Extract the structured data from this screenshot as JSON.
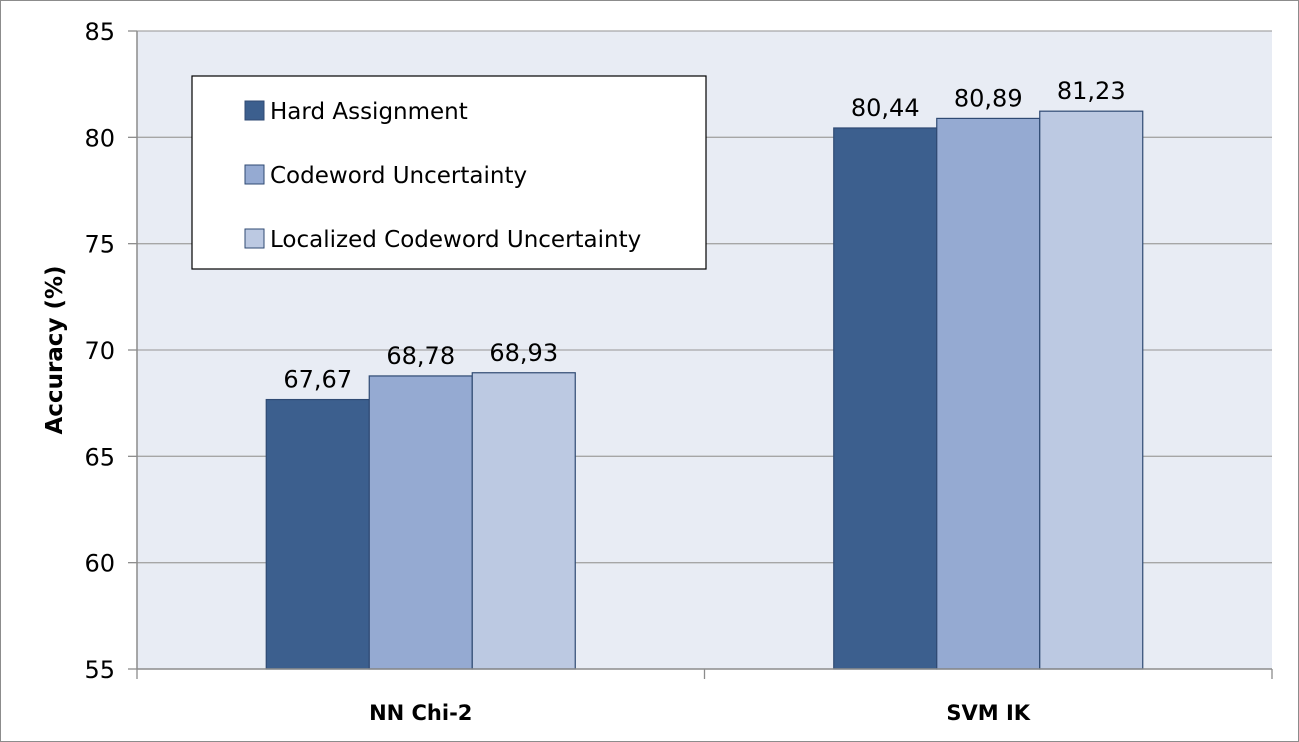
{
  "chart_data": {
    "type": "bar",
    "categories": [
      "NN Chi-2",
      "SVM IK"
    ],
    "series": [
      {
        "name": "Hard Assignment",
        "values": [
          67.67,
          80.44
        ],
        "labels": [
          "67,67",
          "80,44"
        ],
        "color": "#3c5f8e"
      },
      {
        "name": "Codeword Uncertainty",
        "values": [
          68.78,
          80.89
        ],
        "labels": [
          "68,78",
          "80,89"
        ],
        "color": "#95aad2"
      },
      {
        "name": "Localized Codeword Uncertainty",
        "values": [
          68.93,
          81.23
        ],
        "labels": [
          "68,93",
          "81,23"
        ],
        "color": "#bcc9e2"
      }
    ],
    "title": "",
    "xlabel": "",
    "ylabel": "Accuracy (%)",
    "ylim": [
      55,
      85
    ],
    "yticks": [
      "55",
      "60",
      "65",
      "70",
      "75",
      "80",
      "85"
    ],
    "grid": true,
    "legend_position": "top-left",
    "plot_background": "#e8ecf4",
    "grid_color": "#a6a6a6"
  }
}
